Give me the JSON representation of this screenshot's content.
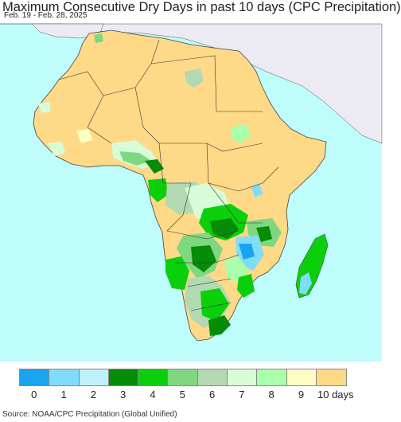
{
  "title": "Maximum Consecutive Dry Days in past 10 days (CPC Precipitation)",
  "date_range": "Feb. 19 - Feb. 28, 2025",
  "source": "Source: NOAA/CPC Precipitation (Global Unified)",
  "legend": {
    "labels": [
      "0",
      "1",
      "2",
      "3",
      "4",
      "5",
      "6",
      "7",
      "8",
      "9",
      "10 days"
    ],
    "colors": [
      "#1aa3ef",
      "#80dcf8",
      "#bff0fb",
      "#068c06",
      "#0bcf0b",
      "#7fd77f",
      "#b2d9b2",
      "#d8fcd8",
      "#aaffaa",
      "#fefec4",
      "#fed987"
    ]
  },
  "map_colors": {
    "ocean": "#bffcfc",
    "non_africa_land": "#eceaf2",
    "dominant_land": "#fed987"
  }
}
